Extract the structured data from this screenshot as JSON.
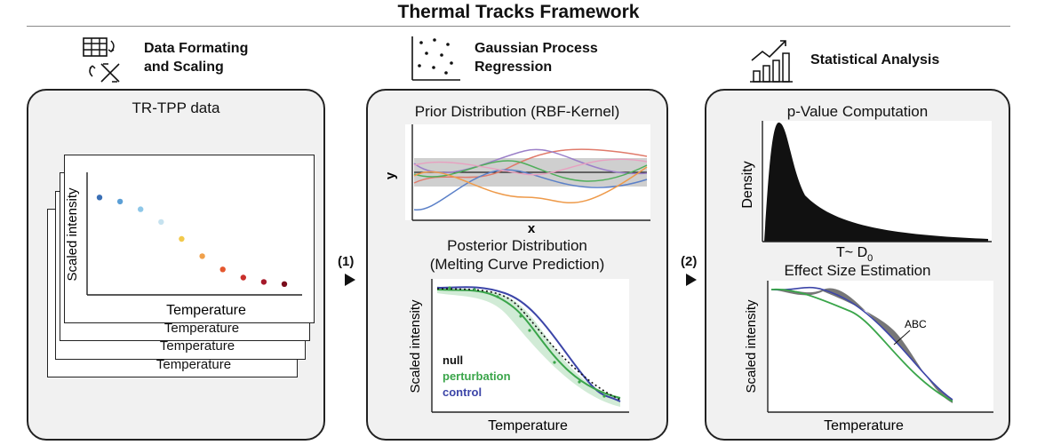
{
  "title": "Thermal Tracks Framework",
  "stages": [
    {
      "line1": "Data Formating",
      "line2": "and Scaling",
      "icon": "table-transform-icon"
    },
    {
      "line1": "Gaussian Process",
      "line2": "Regression",
      "icon": "scatter-icon"
    },
    {
      "line1": "Statistical Analysis",
      "icon": "bar-chart-trend-icon"
    }
  ],
  "steps": [
    "(1)",
    "(2)"
  ],
  "panel1": {
    "title": "TR-TPP data",
    "ylabel": "Scaled intensity",
    "xlabel": "Temperature",
    "back_labels": [
      "Temperature",
      "Temperature",
      "Temperature"
    ],
    "point_colors": [
      "#3a6fb5",
      "#5b9fd6",
      "#8ec7e8",
      "#c6e2ef",
      "#f2c94c",
      "#f0a04b",
      "#e4572e",
      "#c9302c",
      "#a5192a",
      "#7a0c1c"
    ]
  },
  "panel2": {
    "prior_title": "Prior Distribution (RBF-Kernel)",
    "prior_ylabel": "y",
    "prior_xlabel": "x",
    "posterior_title_1": "Posterior Distribution",
    "posterior_title_2": "(Melting Curve Prediction)",
    "ylabel": "Scaled intensity",
    "xlabel": "Temperature",
    "legend": [
      {
        "label": "null",
        "color": "#111111"
      },
      {
        "label": "perturbation",
        "color": "#3aa54a"
      },
      {
        "label": "control",
        "color": "#3c45a8"
      }
    ]
  },
  "panel3": {
    "top_title": "p-Value Computation",
    "density_label": "Density",
    "stat_label": "T~ D",
    "stat_sub": "0",
    "bottom_title": "Effect Size Estimation",
    "ylabel": "Scaled intensity",
    "xlabel": "Temperature",
    "annotation": "ABC"
  }
}
